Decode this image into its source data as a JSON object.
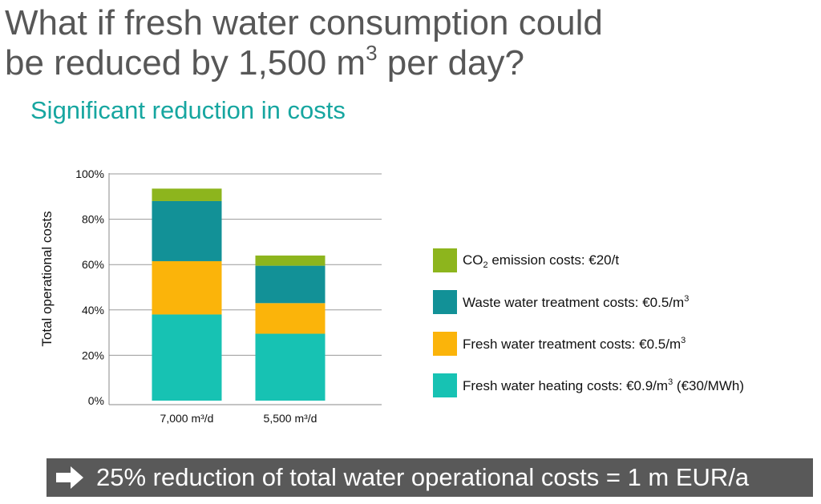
{
  "slide": {
    "title_line1": "What if fresh water consumption could",
    "title_line2_before": "be reduced by 1,500 m",
    "title_line2_sup": "3",
    "title_line2_after": " per day?",
    "subtitle": "Significant reduction in costs",
    "banner_text": "25% reduction of total water operational costs = 1 m EUR/a",
    "banner_icon": "arrow-right-icon"
  },
  "legend": [
    {
      "pre": "CO",
      "sub": "2",
      "post": " emission costs: €20/t",
      "sup": "",
      "tail": "",
      "color": "#8db51d"
    },
    {
      "pre": "Waste water treatment costs: €0.5/m",
      "sub": "",
      "post": "",
      "sup": "3",
      "tail": "",
      "color": "#129197"
    },
    {
      "pre": "Fresh water treatment costs: €0.5/m",
      "sub": "",
      "post": "",
      "sup": "3",
      "tail": "",
      "color": "#fbb40a"
    },
    {
      "pre": "Fresh water heating costs: €0.9/m",
      "sub": "",
      "post": "",
      "sup": "3",
      "tail": " (€30/MWh)",
      "color": "#17c2b3"
    }
  ],
  "chart_data": {
    "type": "bar",
    "stacked": true,
    "ylabel": "Total operational costs",
    "ylim": [
      0,
      100
    ],
    "yticks": [
      "0%",
      "20%",
      "40%",
      "60%",
      "80%",
      "100%"
    ],
    "ytick_values": [
      0,
      20,
      40,
      60,
      80,
      100
    ],
    "grid": true,
    "categories": [
      "7,000 m³/d",
      "5,500 m³/d"
    ],
    "series": [
      {
        "name": "Fresh water heating costs",
        "color": "#17c2b3",
        "values": [
          38,
          29.5
        ]
      },
      {
        "name": "Fresh water treatment costs",
        "color": "#fbb40a",
        "values": [
          23.5,
          13.5
        ]
      },
      {
        "name": "Waste water treatment costs",
        "color": "#129197",
        "values": [
          26.5,
          16.5
        ]
      },
      {
        "name": "CO2 emission costs",
        "color": "#8db51d",
        "values": [
          5.5,
          4.5
        ]
      }
    ],
    "legend_position": "right"
  }
}
